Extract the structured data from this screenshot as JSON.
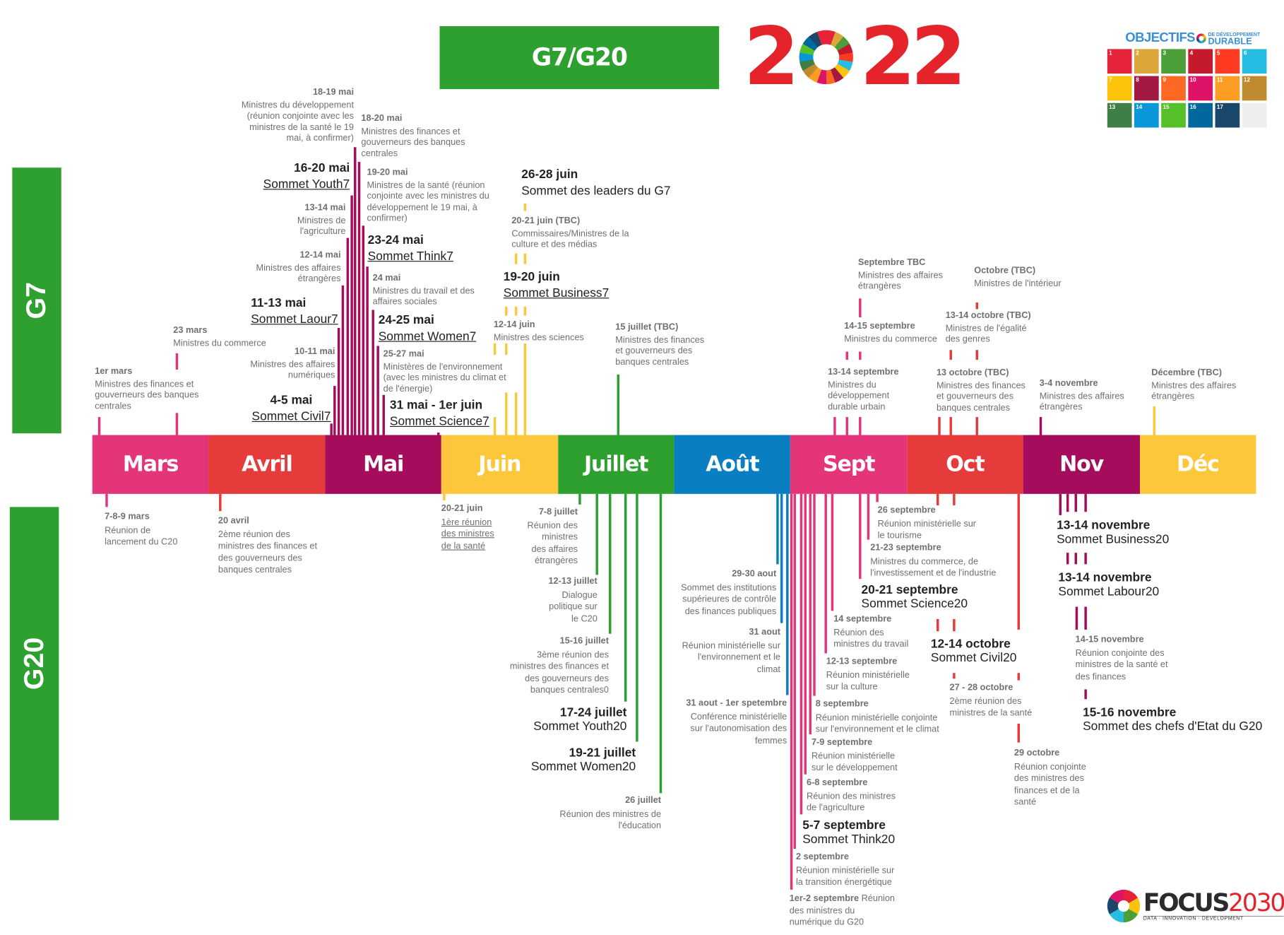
{
  "header": {
    "title": "G7/G20",
    "year_left": "2",
    "year_right": "22"
  },
  "side_labels": {
    "g7": "G7",
    "g20": "G20"
  },
  "months": [
    {
      "label": "Mars",
      "color": "#e5357a"
    },
    {
      "label": "Avril",
      "color": "#e63b3b"
    },
    {
      "label": "Mai",
      "color": "#a50d5c"
    },
    {
      "label": "Juin",
      "color": "#fcc73a"
    },
    {
      "label": "Juillet",
      "color": "#2ea02f"
    },
    {
      "label": "Août",
      "color": "#0a7ec2"
    },
    {
      "label": "Sept",
      "color": "#e5357a"
    },
    {
      "label": "Oct",
      "color": "#e63b3b"
    },
    {
      "label": "Nov",
      "color": "#a50d5c"
    },
    {
      "label": "Déc",
      "color": "#fcc73a"
    }
  ],
  "g7_events": [
    {
      "date": "18-19 mai",
      "desc": "Ministres du développement\n(réunion conjointe avec les\nministres de la santé le 19\nmai, à confirmer)"
    },
    {
      "date": "18-20 mai",
      "desc": "Ministres des finances et\ngouverneurs des banques\ncentrales"
    },
    {
      "date": "16-20 mai",
      "desc": "Sommet Youth7",
      "summit": true
    },
    {
      "date": "19-20 mai",
      "desc": "Ministres de la santé (réunion\nconjointe avec les ministres du\ndéveloppement le 19 mai, à\nconfirmer)"
    },
    {
      "date": "13-14 mai",
      "desc": "Ministres de\nl'agriculture"
    },
    {
      "date": "23-24 mai",
      "desc": "Sommet Think7",
      "summit": true
    },
    {
      "date": "12-14 mai",
      "desc": "Ministres des affaires\nétrangères"
    },
    {
      "date": "24 mai",
      "desc": "Ministres du travail et des\naffaires sociales"
    },
    {
      "date": "11-13 mai",
      "desc": "Sommet Laour7",
      "summit": true
    },
    {
      "date": "24-25 mai",
      "desc": "Sommet Women7",
      "summit": true
    },
    {
      "date": "23 mars",
      "desc": "Ministres du commerce"
    },
    {
      "date": "10-11 mai",
      "desc": "Ministres des affaires\nnumériques"
    },
    {
      "date": "25-27 mai",
      "desc": "Ministères de l'environnement\n(avec les ministres du climat et\nde l'énergie)"
    },
    {
      "date": "1er mars",
      "desc": "Ministres des finances et\ngouverneurs des banques\ncentrales"
    },
    {
      "date": "4-5 mai",
      "desc": "Sommet Civil7",
      "summit": true
    },
    {
      "date": "31 mai - 1er juin",
      "desc": "Sommet Science7",
      "summit": true
    },
    {
      "date": "26-28 juin",
      "desc": "Sommet des leaders du G7",
      "summit": true,
      "plain": true
    },
    {
      "date": "20-21 juin (TBC)",
      "desc": "Commissaires/Ministres de la\nculture et des médias"
    },
    {
      "date": "19-20 juin",
      "desc": "Sommet Business7",
      "summit": true
    },
    {
      "date": "12-14 juin",
      "desc": "Ministres des sciences"
    },
    {
      "date": "15 juillet (TBC)",
      "desc": "Ministres des finances\net gouverneurs des\nbanques centrales"
    },
    {
      "date": "Septembre TBC",
      "desc": "Ministres des affaires\nétrangères"
    },
    {
      "date": "Octobre (TBC)",
      "desc": "Ministres de l'intérieur"
    },
    {
      "date": "14-15 septembre",
      "desc": "Ministres du commerce"
    },
    {
      "date": "13-14 octobre (TBC)",
      "desc": "Ministres de l'égalité\ndes genres"
    },
    {
      "date": "13-14 septembre",
      "desc": "Ministres du\ndéveloppement\ndurable urbain"
    },
    {
      "date": "13 octobre (TBC)",
      "desc": "Ministres des finances\net gouverneurs des\nbanques centrales"
    },
    {
      "date": "3-4 novembre",
      "desc": "Ministres des affaires\nétrangères"
    },
    {
      "date": "Décembre (TBC)",
      "desc": "Ministres des affaires\nétrangères"
    }
  ],
  "g20_events": [
    {
      "date": "7-8-9 mars",
      "desc": "Réunion de\nlancement du C20"
    },
    {
      "date": "20 avril",
      "desc": "2ème réunion des\nministres des finances et\ndes gouverneurs des\nbanques centrales"
    },
    {
      "date": "20-21 juin",
      "desc": "1ère réunion\ndes ministres\nde la santé"
    },
    {
      "date": "7-8 juillet",
      "desc": "Réunion des\nministres\ndes affaires\nétrangères"
    },
    {
      "date": "12-13 juillet",
      "desc": "Dialogue\npolitique sur\nle C20"
    },
    {
      "date": "15-16 juillet",
      "desc": "3ème réunion des\nministres des finances et\ndes gouverneurs des\nbanques centrales0"
    },
    {
      "date": "17-24 juillet",
      "desc": "Sommet Youth20",
      "summit": true
    },
    {
      "date": "19-21 juillet",
      "desc": "Sommet Women20",
      "summit": true
    },
    {
      "date": "26 juillet",
      "desc": "Réunion des ministres de\nl'éducation"
    },
    {
      "date": "29-30 aout",
      "desc": "Sommet des institutions\nsupérieures de contrôle\ndes finances publiques"
    },
    {
      "date": "31 aout",
      "desc": "Réunion ministérielle sur\nl'environnement et le\nclimat"
    },
    {
      "date": "31 aout - 1er spetembre",
      "desc": "Conférence ministérielle\nsur l'autonomisation des\nfemmes"
    },
    {
      "date": "26 septembre",
      "desc": "Réunion ministérielle sur\nle tourisme"
    },
    {
      "date": "21-23 septembre",
      "desc": "Ministres du commerce, de\nl'investissement et de l'industrie"
    },
    {
      "date": "20-21 septembre",
      "desc": "Sommet Science20",
      "summit": true
    },
    {
      "date": "14 septembre",
      "desc": "Réunion des\nministres du travail"
    },
    {
      "date": "12-13 septembre",
      "desc": "Réunion ministérielle\nsur la culture"
    },
    {
      "date": "8 septembre",
      "desc": "Réunion ministérielle conjointe\nsur l'environnement et le climat"
    },
    {
      "date": "7-9 septembre",
      "desc": "Réunion ministérielle\nsur le développement"
    },
    {
      "date": "6-8 septembre",
      "desc": "Réunion des ministres\nde l'agriculture"
    },
    {
      "date": "5-7 septembre",
      "desc": "Sommet Think20",
      "summit": true
    },
    {
      "date": "2 septembre",
      "desc": "Réunion ministérielle sur\nla transition énergétique"
    },
    {
      "date": "1er-2 septembre",
      "desc": " Réunion\ndes ministres du\nnumérique du G20"
    },
    {
      "date": "12-14 octobre",
      "desc": "Sommet Civil20",
      "summit": true
    },
    {
      "date": "27 - 28 octobre",
      "desc": "2ème réunion des\nministres de la santé"
    },
    {
      "date": "29 octobre",
      "desc": "Réunion conjointe\ndes ministres des\nfinances et de la\nsanté"
    },
    {
      "date": "13-14 novembre",
      "desc": "Sommet Business20",
      "summit": true
    },
    {
      "date": "13-14 novembre",
      "desc": "Sommet Labour20",
      "summit": true
    },
    {
      "date": "14-15 novembre",
      "desc": "Réunion conjointe des\nministres de la santé et\ndes finances"
    },
    {
      "date": "15-16 novembre",
      "desc": "Sommet des chefs d'Etat du G20",
      "summit": true
    }
  ],
  "sdg_logo": {
    "title": "OBJECTIFS",
    "sub1": "DE DÉVELOPPEMENT",
    "sub2": "DURABLE",
    "tiles": [
      "1",
      "2",
      "3",
      "4",
      "5",
      "6",
      "7",
      "8",
      "9",
      "10",
      "11",
      "12",
      "13",
      "14",
      "15",
      "16",
      "17",
      ""
    ],
    "colors": [
      "#e5243b",
      "#dda63a",
      "#4c9f38",
      "#c5192d",
      "#ff3a21",
      "#26bde2",
      "#fcc30b",
      "#a21942",
      "#fd6925",
      "#dd1367",
      "#fd9d24",
      "#bf8b2e",
      "#3f7e44",
      "#0a97d9",
      "#56c02b",
      "#00689d",
      "#19486a",
      "#eeeeee"
    ]
  },
  "focus_logo": {
    "name": "FOCUS",
    "number": "2030",
    "tagline": "DATA · INNOVATION · DEVELOPMENT"
  }
}
